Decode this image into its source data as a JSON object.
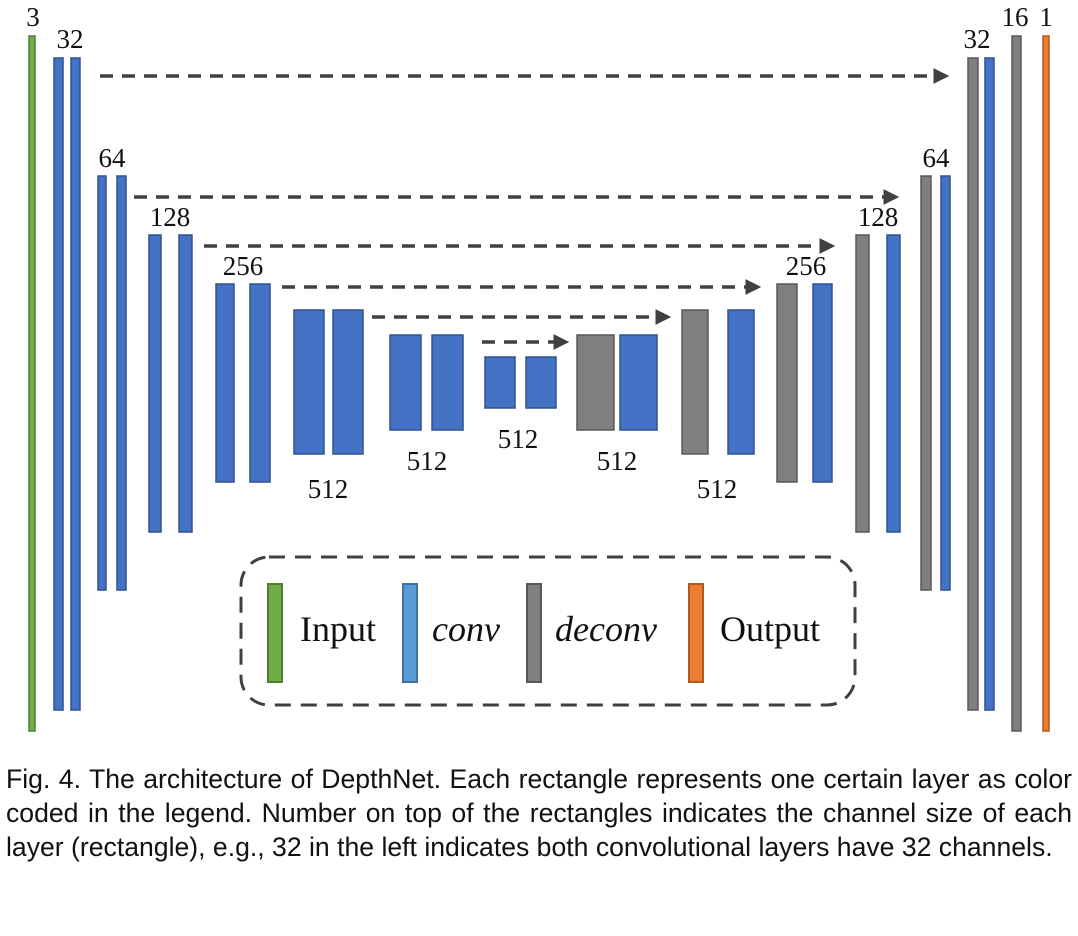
{
  "diagram": {
    "colors": {
      "input": "#70ad47",
      "conv": "#4472c4",
      "conv_legend": "#5b9bd5",
      "deconv": "#7f7f7f",
      "output": "#ed7d31",
      "arrow": "#404040"
    },
    "channel_labels": {
      "input": "3",
      "enc1": "32",
      "enc2": "64",
      "enc3": "128",
      "enc4": "256",
      "enc5": "512",
      "enc6": "512",
      "bottleneck": "512",
      "dec6": "512",
      "dec5": "512",
      "dec4": "256",
      "dec3": "128",
      "dec2": "64",
      "dec1": "32",
      "dec0": "16",
      "output": "1"
    },
    "legend": {
      "input": "Input",
      "conv": "conv",
      "deconv": "deconv",
      "output": "Output"
    }
  },
  "caption": "Fig. 4. The architecture of DepthNet. Each rectangle represents one certain layer as color coded in the legend. Number on top of the rectangles indicates the channel size of each layer (rectangle), e.g., 32 in the left indicates both convolutional layers have 32 channels."
}
